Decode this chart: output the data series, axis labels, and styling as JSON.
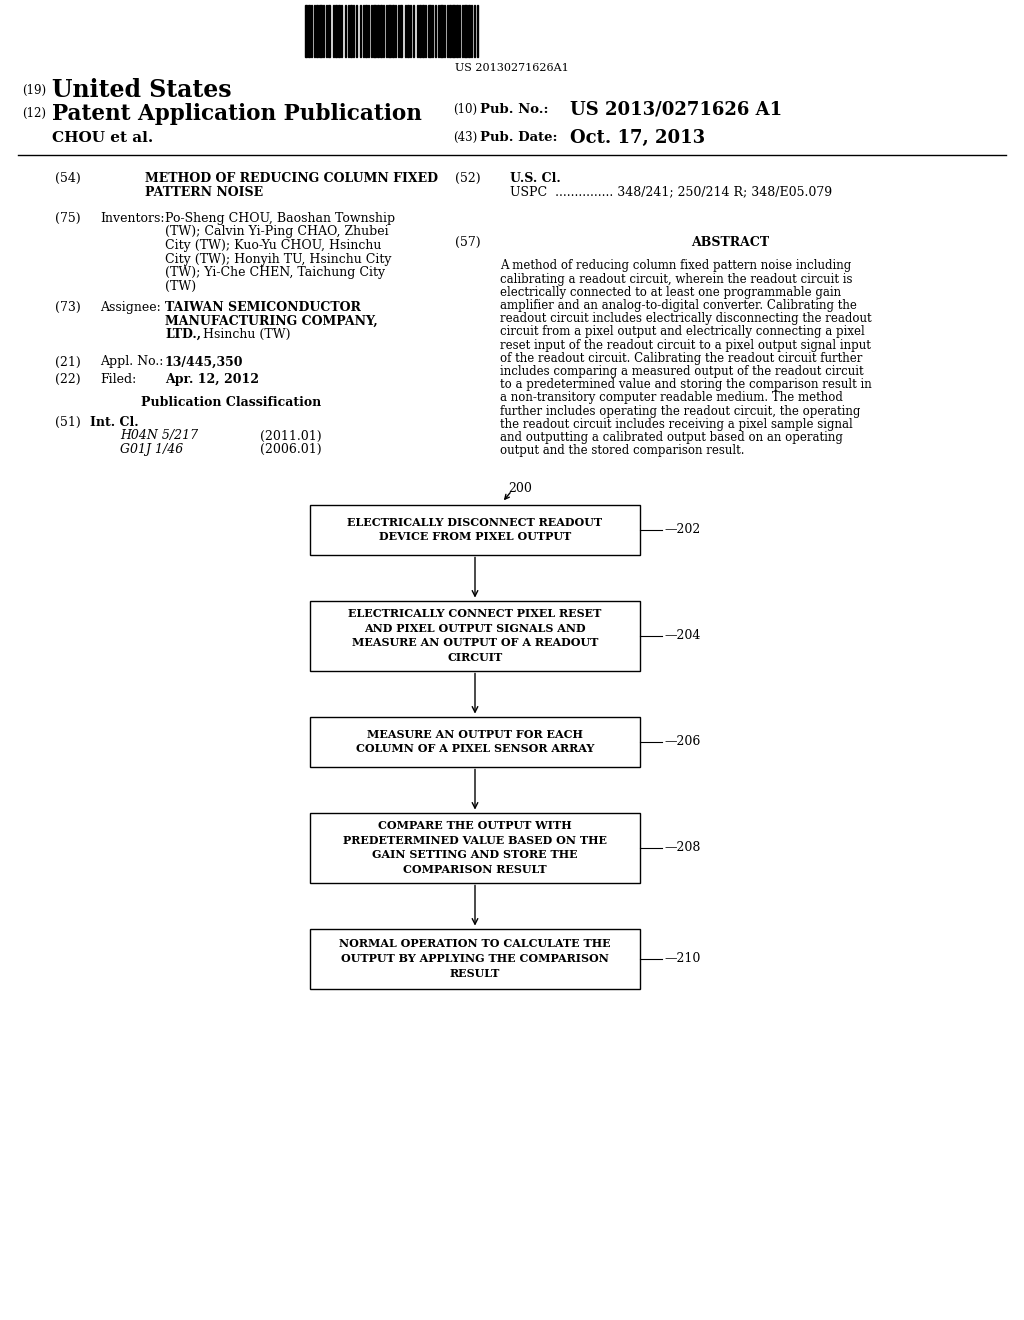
{
  "bg_color": "#ffffff",
  "barcode_text": "US 20130271626A1",
  "country": "United States",
  "pub_type": "Patent Application Publication",
  "inventors_label": "CHOU et al.",
  "field54_line1": "METHOD OF REDUCING COLUMN FIXED",
  "field54_line2": "PATTERN NOISE",
  "field75_inv_lines": [
    "Po-Sheng CHOU, Baoshan Township",
    "(TW); Calvin Yi-Ping CHAO, Zhubei",
    "City (TW); Kuo-Yu CHOU, Hsinchu",
    "City (TW); Honyih TU, Hsinchu City",
    "(TW); Yi-Che CHEN, Taichung City",
    "(TW)"
  ],
  "field73_line1": "TAIWAN SEMICONDUCTOR",
  "field73_line2": "MANUFACTURING COMPANY,",
  "field73_line3": "LTD., Hsinchu (TW)",
  "field21_content": "13/445,350",
  "field22_content": "Apr. 12, 2012",
  "field51_class1": "H04N 5/217",
  "field51_year1": "(2011.01)",
  "field51_class2": "G01J 1/46",
  "field51_year2": "(2006.01)",
  "field52_uspc": "USPC  ............... 348/241; 250/214 R; 348/E05.079",
  "abstract_lines": [
    "A method of reducing column fixed pattern noise including",
    "calibrating a readout circuit, wherein the readout circuit is",
    "electrically connected to at least one programmable gain",
    "amplifier and an analog-to-digital converter. Calibrating the",
    "readout circuit includes electrically disconnecting the readout",
    "circuit from a pixel output and electrically connecting a pixel",
    "reset input of the readout circuit to a pixel output signal input",
    "of the readout circuit. Calibrating the readout circuit further",
    "includes comparing a measured output of the readout circuit",
    "to a predetermined value and storing the comparison result in",
    "a non-transitory computer readable medium. The method",
    "further includes operating the readout circuit, the operating",
    "the readout circuit includes receiving a pixel sample signal",
    "and outputting a calibrated output based on an operating",
    "output and the stored comparison result."
  ],
  "diagram_label": "200",
  "box1_text": "ELECTRICALLY DISCONNECT READOUT\nDEVICE FROM PIXEL OUTPUT",
  "box1_num": "202",
  "box2_text": "ELECTRICALLY CONNECT PIXEL RESET\nAND PIXEL OUTPUT SIGNALS AND\nMEASURE AN OUTPUT OF A READOUT\nCIRCUIT",
  "box2_num": "204",
  "box3_text": "MEASURE AN OUTPUT FOR EACH\nCOLUMN OF A PIXEL SENSOR ARRAY",
  "box3_num": "206",
  "box4_text": "COMPARE THE OUTPUT WITH\nPREDETERMINED VALUE BASED ON THE\nGAIN SETTING AND STORE THE\nCOMPARISON RESULT",
  "box4_num": "208",
  "box5_text": "NORMAL OPERATION TO CALCULATE THE\nOUTPUT BY APPLYING THE COMPARISON\nRESULT",
  "box5_num": "210"
}
